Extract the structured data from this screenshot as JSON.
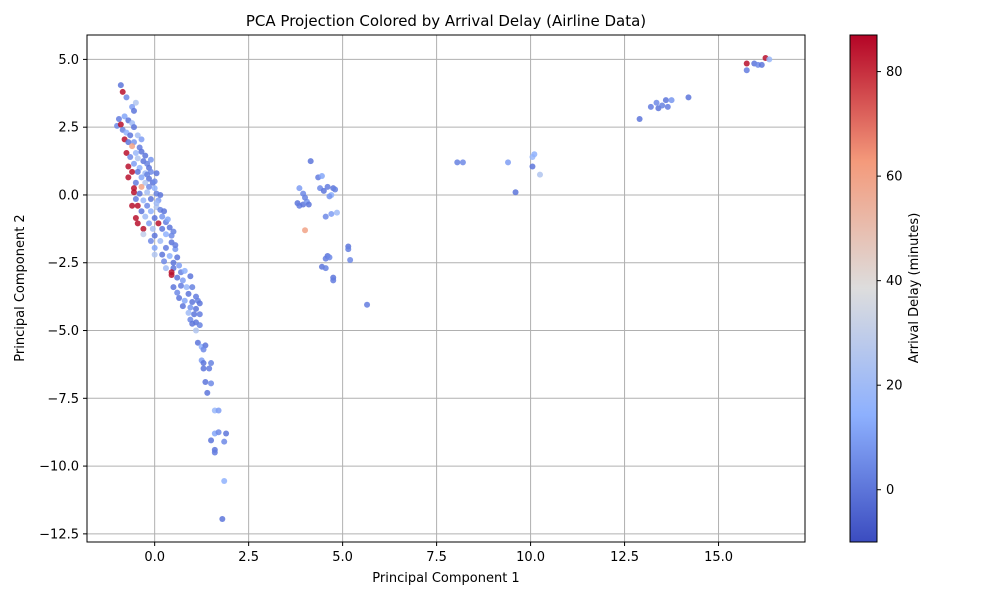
{
  "chart_data": {
    "type": "scatter",
    "title": "PCA Projection Colored by Arrival Delay (Airline Data)",
    "xlabel": "Principal Component 1",
    "ylabel": "Principal Component 2",
    "xlim": [
      -1.8,
      17.3
    ],
    "ylim": [
      -12.8,
      5.9
    ],
    "xticks": [
      0,
      2.5,
      5,
      7.5,
      10,
      12.5,
      15
    ],
    "xtick_labels": [
      "0.0",
      "2.5",
      "5.0",
      "7.5",
      "10.0",
      "12.5",
      "15.0"
    ],
    "yticks": [
      5,
      2.5,
      0,
      -2.5,
      -5,
      -7.5,
      -10,
      -12.5
    ],
    "ytick_labels": [
      "5.0",
      "2.5",
      "0.0",
      "−2.5",
      "−5.0",
      "−7.5",
      "−10.0",
      "−12.5"
    ],
    "grid": true,
    "colorbar": {
      "label": "Arrival Delay (minutes)",
      "colormap": "coolwarm",
      "range": [
        -10,
        87
      ],
      "ticks": [
        0,
        20,
        40,
        60,
        80
      ],
      "tick_labels": [
        "0",
        "20",
        "40",
        "60",
        "80"
      ],
      "low_color": "#3b4cc0",
      "mid_color": "#dddddd",
      "high_color": "#b40426"
    },
    "points": [
      {
        "x": -0.9,
        "y": 4.05,
        "c": 0
      },
      {
        "x": -0.85,
        "y": 3.8,
        "c": 85
      },
      {
        "x": -0.75,
        "y": 3.6,
        "c": 5
      },
      {
        "x": -0.5,
        "y": 3.4,
        "c": 25
      },
      {
        "x": -0.6,
        "y": 3.25,
        "c": 10
      },
      {
        "x": -0.55,
        "y": 3.1,
        "c": 0
      },
      {
        "x": -0.95,
        "y": 2.8,
        "c": 2
      },
      {
        "x": -0.8,
        "y": 2.9,
        "c": 12
      },
      {
        "x": -0.7,
        "y": 2.75,
        "c": 0
      },
      {
        "x": -1.0,
        "y": 2.55,
        "c": 5
      },
      {
        "x": -0.9,
        "y": 2.6,
        "c": 85
      },
      {
        "x": -0.6,
        "y": 2.65,
        "c": 20
      },
      {
        "x": -0.55,
        "y": 2.5,
        "c": 0
      },
      {
        "x": -0.85,
        "y": 2.4,
        "c": 3
      },
      {
        "x": -0.75,
        "y": 2.3,
        "c": 15
      },
      {
        "x": -0.65,
        "y": 2.2,
        "c": 0
      },
      {
        "x": -0.45,
        "y": 2.2,
        "c": 22
      },
      {
        "x": -0.8,
        "y": 2.05,
        "c": 85
      },
      {
        "x": -0.7,
        "y": 1.95,
        "c": 0
      },
      {
        "x": -0.55,
        "y": 1.95,
        "c": 8
      },
      {
        "x": -0.6,
        "y": 1.8,
        "c": 60
      },
      {
        "x": -0.4,
        "y": 1.75,
        "c": 2
      },
      {
        "x": -0.75,
        "y": 1.55,
        "c": 85
      },
      {
        "x": -0.5,
        "y": 1.55,
        "c": 18
      },
      {
        "x": -0.35,
        "y": 1.6,
        "c": 0
      },
      {
        "x": -0.65,
        "y": 1.4,
        "c": 5
      },
      {
        "x": -0.45,
        "y": 1.35,
        "c": 25
      },
      {
        "x": -0.3,
        "y": 1.25,
        "c": 0
      },
      {
        "x": -0.7,
        "y": 1.05,
        "c": 85
      },
      {
        "x": -0.55,
        "y": 1.15,
        "c": 10
      },
      {
        "x": -0.2,
        "y": 1.15,
        "c": 3
      },
      {
        "x": -0.4,
        "y": 1.0,
        "c": 15
      },
      {
        "x": -0.15,
        "y": 1.0,
        "c": 0
      },
      {
        "x": -0.6,
        "y": 0.85,
        "c": 85
      },
      {
        "x": -0.45,
        "y": 0.85,
        "c": 0
      },
      {
        "x": -0.25,
        "y": 0.8,
        "c": 20
      },
      {
        "x": -0.1,
        "y": 0.85,
        "c": 5
      },
      {
        "x": -0.7,
        "y": 0.65,
        "c": 85
      },
      {
        "x": -0.35,
        "y": 0.65,
        "c": 12
      },
      {
        "x": -0.15,
        "y": 0.6,
        "c": 0
      },
      {
        "x": -0.5,
        "y": 0.45,
        "c": 2
      },
      {
        "x": -0.25,
        "y": 0.45,
        "c": 25
      },
      {
        "x": -0.05,
        "y": 0.45,
        "c": 0
      },
      {
        "x": -0.55,
        "y": 0.25,
        "c": 85
      },
      {
        "x": -0.35,
        "y": 0.3,
        "c": 60
      },
      {
        "x": -0.15,
        "y": 0.3,
        "c": 5
      },
      {
        "x": 0.0,
        "y": 0.25,
        "c": 15
      },
      {
        "x": -0.55,
        "y": 0.1,
        "c": 85
      },
      {
        "x": -0.4,
        "y": 0.05,
        "c": 0
      },
      {
        "x": -0.2,
        "y": 0.1,
        "c": 22
      },
      {
        "x": 0.05,
        "y": 0.05,
        "c": 3
      },
      {
        "x": -0.5,
        "y": -0.15,
        "c": 2
      },
      {
        "x": -0.3,
        "y": -0.2,
        "c": 18
      },
      {
        "x": -0.1,
        "y": -0.15,
        "c": 0
      },
      {
        "x": 0.1,
        "y": -0.2,
        "c": 10
      },
      {
        "x": -0.45,
        "y": -0.4,
        "c": 85
      },
      {
        "x": -0.2,
        "y": -0.4,
        "c": 5
      },
      {
        "x": 0.05,
        "y": -0.45,
        "c": 25
      },
      {
        "x": -0.6,
        "y": -0.4,
        "c": 85
      },
      {
        "x": -0.35,
        "y": -0.6,
        "c": 0
      },
      {
        "x": -0.1,
        "y": -0.6,
        "c": 15
      },
      {
        "x": 0.15,
        "y": -0.55,
        "c": 3
      },
      {
        "x": -0.5,
        "y": -0.85,
        "c": 85
      },
      {
        "x": -0.25,
        "y": -0.8,
        "c": 20
      },
      {
        "x": 0.0,
        "y": -0.85,
        "c": 0
      },
      {
        "x": 0.2,
        "y": -0.8,
        "c": 8
      },
      {
        "x": -0.45,
        "y": -1.05,
        "c": 85
      },
      {
        "x": -0.15,
        "y": -1.05,
        "c": 10
      },
      {
        "x": 0.1,
        "y": -1.05,
        "c": 85
      },
      {
        "x": 0.3,
        "y": -1.0,
        "c": 2
      },
      {
        "x": -0.3,
        "y": -1.25,
        "c": 85
      },
      {
        "x": -0.05,
        "y": -1.25,
        "c": 22
      },
      {
        "x": 0.2,
        "y": -1.25,
        "c": 0
      },
      {
        "x": -0.3,
        "y": -1.45,
        "c": 30
      },
      {
        "x": 0.0,
        "y": -1.5,
        "c": 0
      },
      {
        "x": 0.3,
        "y": -1.45,
        "c": 15
      },
      {
        "x": 0.5,
        "y": -1.35,
        "c": 3
      },
      {
        "x": -0.1,
        "y": -1.7,
        "c": 5
      },
      {
        "x": 0.15,
        "y": -1.7,
        "c": 20
      },
      {
        "x": 0.45,
        "y": -1.75,
        "c": 0
      },
      {
        "x": 0.0,
        "y": -1.95,
        "c": 12
      },
      {
        "x": 0.3,
        "y": -1.95,
        "c": 2
      },
      {
        "x": 0.55,
        "y": -2.0,
        "c": 8
      },
      {
        "x": 0.0,
        "y": -2.2,
        "c": 25
      },
      {
        "x": 0.2,
        "y": -2.2,
        "c": 0
      },
      {
        "x": 0.4,
        "y": -2.25,
        "c": 15
      },
      {
        "x": 0.25,
        "y": -2.45,
        "c": 5
      },
      {
        "x": 0.5,
        "y": -2.5,
        "c": 0
      },
      {
        "x": 0.3,
        "y": -2.7,
        "c": 20
      },
      {
        "x": 0.5,
        "y": -2.7,
        "c": 0
      },
      {
        "x": 0.45,
        "y": -2.85,
        "c": 85
      },
      {
        "x": 0.45,
        "y": -2.95,
        "c": 85
      },
      {
        "x": 0.7,
        "y": -2.85,
        "c": 3
      },
      {
        "x": 0.8,
        "y": -2.8,
        "c": 15
      },
      {
        "x": 0.6,
        "y": -3.05,
        "c": 0
      },
      {
        "x": 0.75,
        "y": -3.15,
        "c": 10
      },
      {
        "x": 0.5,
        "y": -3.4,
        "c": 0
      },
      {
        "x": 0.7,
        "y": -3.35,
        "c": 2
      },
      {
        "x": 0.85,
        "y": -3.4,
        "c": 18
      },
      {
        "x": 0.6,
        "y": -3.6,
        "c": 5
      },
      {
        "x": 0.9,
        "y": -3.65,
        "c": 0
      },
      {
        "x": 1.1,
        "y": -3.75,
        "c": 2
      },
      {
        "x": 0.65,
        "y": -3.8,
        "c": 0
      },
      {
        "x": 0.8,
        "y": -3.9,
        "c": 12
      },
      {
        "x": 1.0,
        "y": -3.95,
        "c": 0
      },
      {
        "x": 1.15,
        "y": -3.9,
        "c": 3
      },
      {
        "x": 0.75,
        "y": -4.1,
        "c": 0
      },
      {
        "x": 0.95,
        "y": -4.15,
        "c": 8
      },
      {
        "x": 1.1,
        "y": -4.2,
        "c": 0
      },
      {
        "x": 0.9,
        "y": -4.35,
        "c": 20
      },
      {
        "x": 1.05,
        "y": -4.4,
        "c": 0
      },
      {
        "x": 1.2,
        "y": -4.4,
        "c": 2
      },
      {
        "x": 0.95,
        "y": -4.6,
        "c": 5
      },
      {
        "x": 1.1,
        "y": -4.7,
        "c": 0
      },
      {
        "x": 1.2,
        "y": -4.8,
        "c": 3
      },
      {
        "x": 1.0,
        "y": -4.75,
        "c": 0
      },
      {
        "x": 1.1,
        "y": -5.0,
        "c": 25
      },
      {
        "x": 1.15,
        "y": -5.45,
        "c": 0
      },
      {
        "x": 1.25,
        "y": -5.6,
        "c": 15
      },
      {
        "x": 1.35,
        "y": -5.55,
        "c": 0
      },
      {
        "x": 1.3,
        "y": -5.7,
        "c": 5
      },
      {
        "x": 1.25,
        "y": -6.1,
        "c": 10
      },
      {
        "x": 1.3,
        "y": -6.2,
        "c": 0
      },
      {
        "x": 1.5,
        "y": -6.2,
        "c": 3
      },
      {
        "x": 1.3,
        "y": -6.4,
        "c": 0
      },
      {
        "x": 1.45,
        "y": -6.4,
        "c": 2
      },
      {
        "x": 1.35,
        "y": -6.9,
        "c": 0
      },
      {
        "x": 1.5,
        "y": -6.95,
        "c": 5
      },
      {
        "x": 1.4,
        "y": -7.3,
        "c": 0
      },
      {
        "x": 1.6,
        "y": -7.95,
        "c": 18
      },
      {
        "x": 1.7,
        "y": -7.95,
        "c": 10
      },
      {
        "x": 1.6,
        "y": -8.8,
        "c": 12
      },
      {
        "x": 1.7,
        "y": -8.75,
        "c": 5
      },
      {
        "x": 1.9,
        "y": -8.8,
        "c": 0
      },
      {
        "x": 1.5,
        "y": -9.05,
        "c": 0
      },
      {
        "x": 1.85,
        "y": -9.1,
        "c": 5
      },
      {
        "x": 1.6,
        "y": -9.4,
        "c": 0
      },
      {
        "x": 1.6,
        "y": -9.5,
        "c": 2
      },
      {
        "x": 1.85,
        "y": -10.55,
        "c": 15
      },
      {
        "x": 1.8,
        "y": -11.95,
        "c": 0
      },
      {
        "x": 0.15,
        "y": 0.0,
        "c": 0
      },
      {
        "x": 0.0,
        "y": 0.5,
        "c": 5
      },
      {
        "x": -0.2,
        "y": 0.75,
        "c": 3
      },
      {
        "x": 0.05,
        "y": -0.3,
        "c": 20
      },
      {
        "x": 0.25,
        "y": -0.6,
        "c": 0
      },
      {
        "x": 0.35,
        "y": -0.9,
        "c": 12
      },
      {
        "x": 0.4,
        "y": -1.2,
        "c": 0
      },
      {
        "x": 0.45,
        "y": -1.5,
        "c": 5
      },
      {
        "x": 0.55,
        "y": -1.85,
        "c": 2
      },
      {
        "x": 0.6,
        "y": -2.3,
        "c": 0
      },
      {
        "x": 0.65,
        "y": -2.6,
        "c": 10
      },
      {
        "x": 0.95,
        "y": -3.0,
        "c": 0
      },
      {
        "x": 1.0,
        "y": -3.4,
        "c": 3
      },
      {
        "x": 1.2,
        "y": -4.0,
        "c": 0
      },
      {
        "x": -0.35,
        "y": 2.05,
        "c": 10
      },
      {
        "x": -0.25,
        "y": 1.45,
        "c": 0
      },
      {
        "x": -0.1,
        "y": 1.3,
        "c": 8
      },
      {
        "x": 0.05,
        "y": 0.8,
        "c": 0
      },
      {
        "x": 3.85,
        "y": 0.25,
        "c": 10
      },
      {
        "x": 3.95,
        "y": 0.05,
        "c": 5
      },
      {
        "x": 3.8,
        "y": -0.3,
        "c": 0
      },
      {
        "x": 3.85,
        "y": -0.4,
        "c": 2
      },
      {
        "x": 3.95,
        "y": -0.35,
        "c": 0
      },
      {
        "x": 4.05,
        "y": -0.25,
        "c": 8
      },
      {
        "x": 4.1,
        "y": -0.35,
        "c": 0
      },
      {
        "x": 4.0,
        "y": -0.1,
        "c": 3
      },
      {
        "x": 4.15,
        "y": 1.25,
        "c": 0
      },
      {
        "x": 4.35,
        "y": 0.65,
        "c": 2
      },
      {
        "x": 4.45,
        "y": 0.7,
        "c": 12
      },
      {
        "x": 4.4,
        "y": 0.25,
        "c": 5
      },
      {
        "x": 4.5,
        "y": 0.15,
        "c": 0
      },
      {
        "x": 4.6,
        "y": 0.3,
        "c": 2
      },
      {
        "x": 4.7,
        "y": 0.0,
        "c": 15
      },
      {
        "x": 4.75,
        "y": 0.25,
        "c": 0
      },
      {
        "x": 4.8,
        "y": 0.2,
        "c": 3
      },
      {
        "x": 4.65,
        "y": -0.05,
        "c": 8
      },
      {
        "x": 4.85,
        "y": -0.65,
        "c": 20
      },
      {
        "x": 4.7,
        "y": -0.7,
        "c": 10
      },
      {
        "x": 4.55,
        "y": -0.8,
        "c": 5
      },
      {
        "x": 4.0,
        "y": -1.3,
        "c": 60
      },
      {
        "x": 4.6,
        "y": -2.25,
        "c": 0
      },
      {
        "x": 4.55,
        "y": -2.35,
        "c": 2
      },
      {
        "x": 4.65,
        "y": -2.3,
        "c": 5
      },
      {
        "x": 4.45,
        "y": -2.65,
        "c": 0
      },
      {
        "x": 4.55,
        "y": -2.7,
        "c": 3
      },
      {
        "x": 4.75,
        "y": -3.05,
        "c": 0
      },
      {
        "x": 4.75,
        "y": -3.15,
        "c": 2
      },
      {
        "x": 5.15,
        "y": -1.9,
        "c": 0
      },
      {
        "x": 5.15,
        "y": -2.0,
        "c": 3
      },
      {
        "x": 5.2,
        "y": -2.4,
        "c": 5
      },
      {
        "x": 5.65,
        "y": -4.05,
        "c": 2
      },
      {
        "x": 8.05,
        "y": 1.2,
        "c": 3
      },
      {
        "x": 8.2,
        "y": 1.2,
        "c": 5
      },
      {
        "x": 9.4,
        "y": 1.2,
        "c": 10
      },
      {
        "x": 9.6,
        "y": 0.1,
        "c": 0
      },
      {
        "x": 10.05,
        "y": 1.4,
        "c": 18
      },
      {
        "x": 10.1,
        "y": 1.5,
        "c": 15
      },
      {
        "x": 10.05,
        "y": 1.05,
        "c": 0
      },
      {
        "x": 10.25,
        "y": 0.75,
        "c": 25
      },
      {
        "x": 12.9,
        "y": 2.8,
        "c": 0
      },
      {
        "x": 13.2,
        "y": 3.25,
        "c": 2
      },
      {
        "x": 13.35,
        "y": 3.4,
        "c": 5
      },
      {
        "x": 13.4,
        "y": 3.2,
        "c": 0
      },
      {
        "x": 13.5,
        "y": 3.3,
        "c": 3
      },
      {
        "x": 13.6,
        "y": 3.5,
        "c": 0
      },
      {
        "x": 13.65,
        "y": 3.25,
        "c": 2
      },
      {
        "x": 13.75,
        "y": 3.5,
        "c": 8
      },
      {
        "x": 14.2,
        "y": 3.6,
        "c": 0
      },
      {
        "x": 15.75,
        "y": 4.85,
        "c": 85
      },
      {
        "x": 15.75,
        "y": 4.6,
        "c": 2
      },
      {
        "x": 15.95,
        "y": 4.85,
        "c": 0
      },
      {
        "x": 16.05,
        "y": 4.8,
        "c": 5
      },
      {
        "x": 16.15,
        "y": 4.8,
        "c": 0
      },
      {
        "x": 16.25,
        "y": 5.05,
        "c": 85
      },
      {
        "x": 16.35,
        "y": 5.0,
        "c": 18
      }
    ]
  }
}
